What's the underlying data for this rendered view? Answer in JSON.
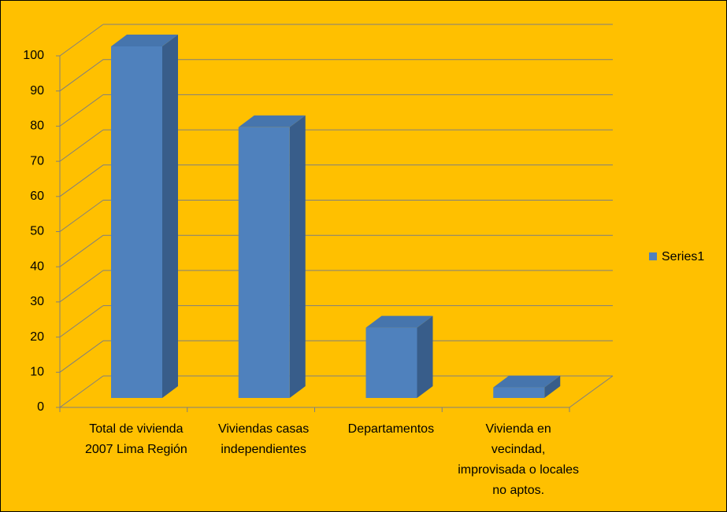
{
  "chart_data": {
    "type": "bar3d",
    "categories": [
      "Total de vivienda 2007 Lima Región",
      "Viviendas casas independientes",
      "Departamentos",
      "Vivienda en vecindad, improvisada o locales no aptos."
    ],
    "series": [
      {
        "name": "Series1",
        "color": "#4F81BD",
        "values": [
          100,
          77,
          20,
          3
        ]
      }
    ],
    "ylim": [
      0,
      100
    ],
    "yticks": [
      0,
      10,
      20,
      30,
      40,
      50,
      60,
      70,
      80,
      90,
      100
    ],
    "grid": true,
    "legend": "right"
  }
}
